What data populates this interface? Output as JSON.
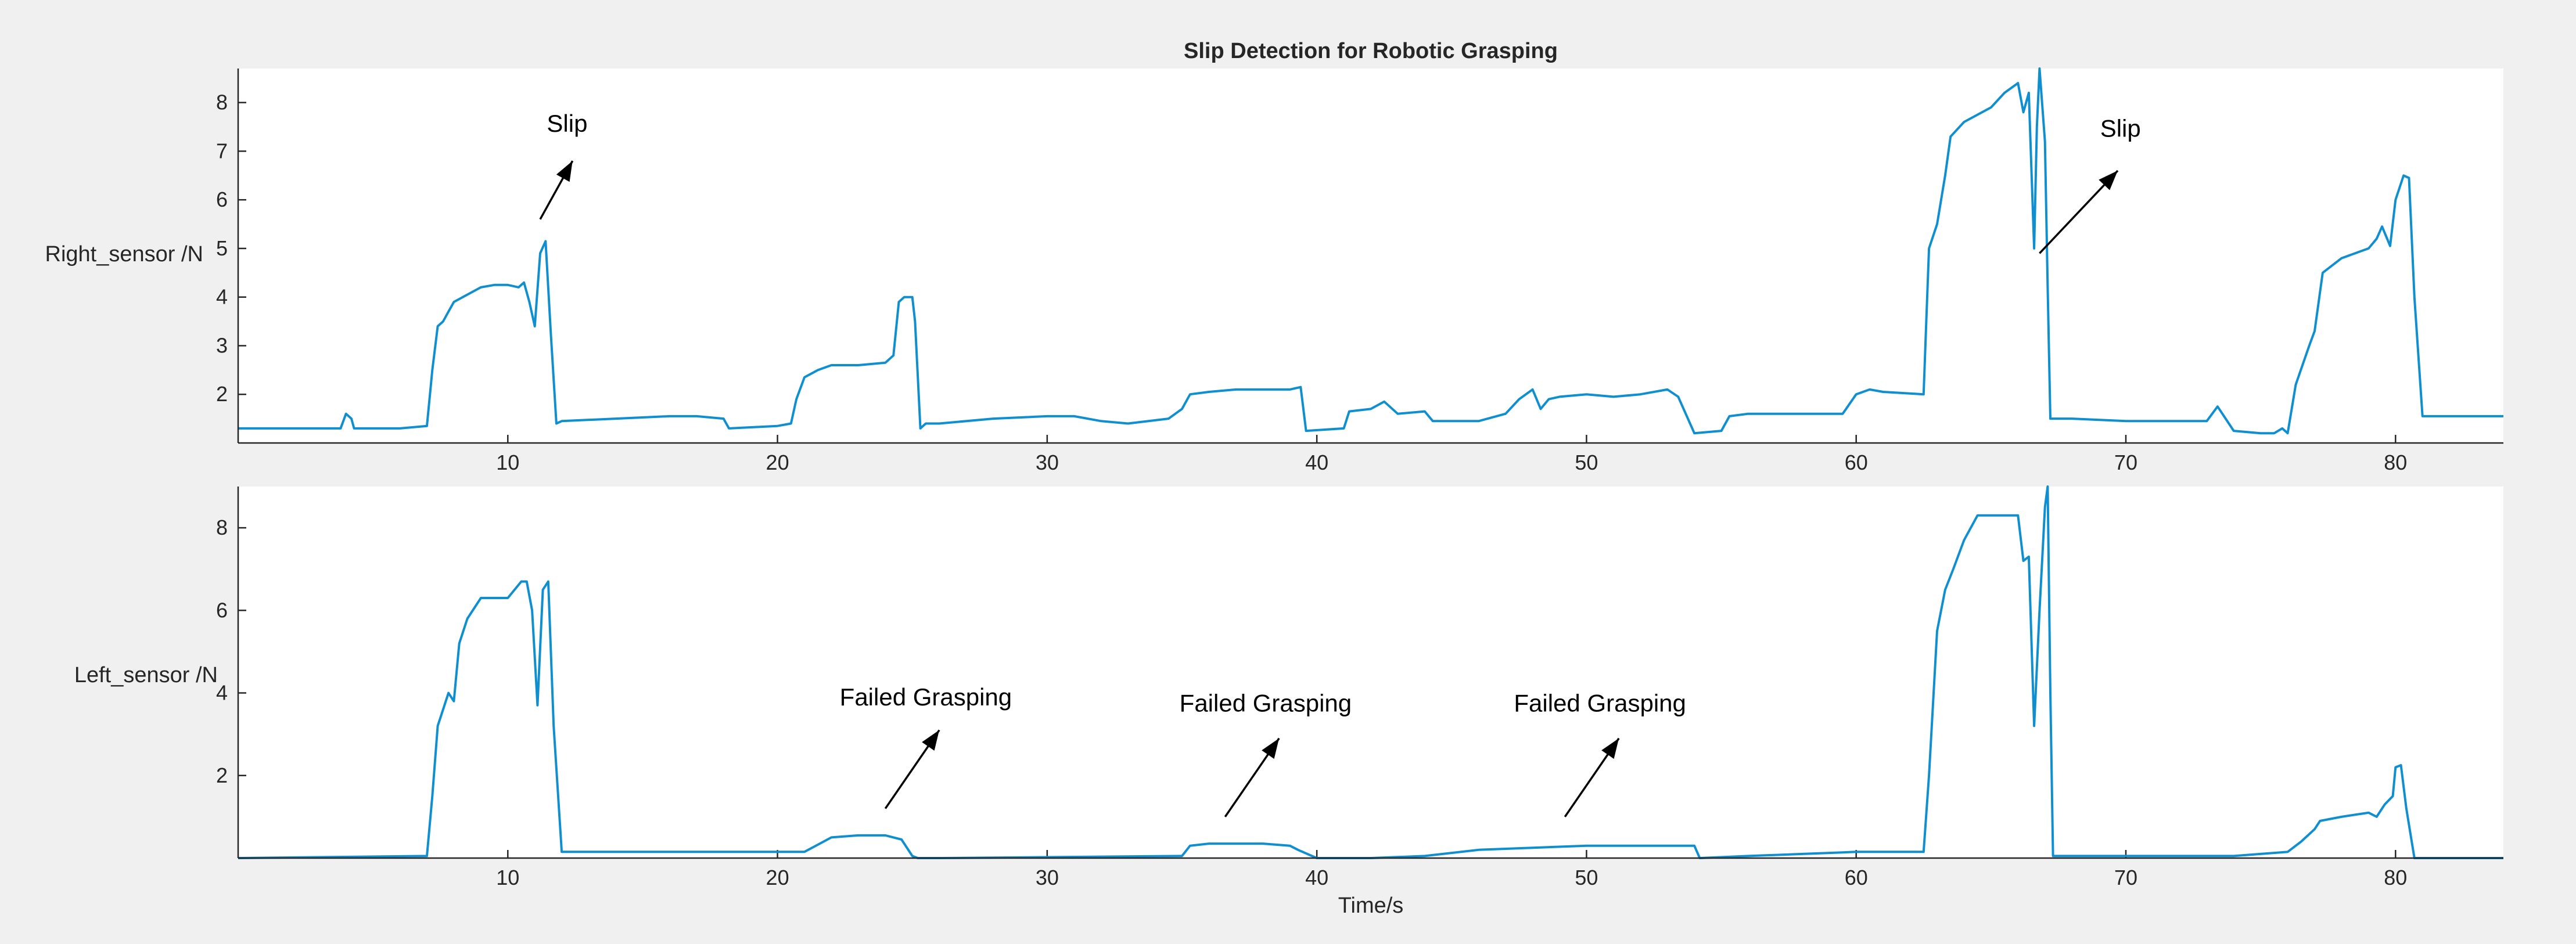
{
  "chart_data": [
    {
      "type": "line",
      "title": "Slip Detection for Robotic Grasping",
      "xlabel": "",
      "ylabel": "Right_sensor /N",
      "xlim": [
        0,
        84
      ],
      "ylim": [
        1,
        8.7
      ],
      "x_ticks": [
        10,
        20,
        30,
        40,
        50,
        60,
        70,
        80
      ],
      "y_ticks": [
        2,
        3,
        4,
        5,
        6,
        7,
        8
      ],
      "grid": false,
      "series": [
        {
          "color": "#0f8fcf",
          "x": [
            0,
            2,
            3.8,
            4,
            4.2,
            4.3,
            6,
            7,
            7.2,
            7.4,
            7.6,
            7.8,
            8,
            8.5,
            9,
            9.5,
            10,
            10.4,
            10.6,
            10.8,
            11,
            11.2,
            11.4,
            11.6,
            11.8,
            12,
            14,
            16,
            17,
            18,
            18.2,
            20,
            20.5,
            20.7,
            21,
            21.5,
            22,
            23,
            24,
            24.3,
            24.5,
            24.7,
            25,
            25.1,
            25.3,
            25.5,
            26,
            28,
            30,
            31,
            32,
            33,
            34.5,
            35,
            35.3,
            36,
            37,
            38,
            39,
            39.4,
            39.6,
            41,
            41.2,
            42,
            42.5,
            43,
            44,
            44.3,
            46,
            47,
            47.5,
            48,
            48.3,
            48.6,
            49,
            50,
            51,
            52,
            53,
            53.4,
            53.6,
            54,
            55,
            55.3,
            56,
            58,
            59.5,
            60,
            60.5,
            61,
            62.5,
            62.6,
            62.7,
            63,
            63.3,
            63.5,
            64,
            65,
            65.5,
            66,
            66.2,
            66.4,
            66.6,
            66.7,
            66.8,
            67,
            67.1,
            67.2,
            67.4,
            68,
            70,
            72,
            73,
            73.4,
            73.7,
            74,
            75,
            75.5,
            75.8,
            76,
            76.3,
            76.8,
            77,
            77.3,
            78,
            79,
            79.3,
            79.5,
            79.8,
            80,
            80.3,
            80.5,
            80.7,
            81,
            82,
            84
          ],
          "y": [
            1.3,
            1.3,
            1.3,
            1.6,
            1.5,
            1.3,
            1.3,
            1.35,
            2.5,
            3.4,
            3.5,
            3.7,
            3.9,
            4.05,
            4.2,
            4.25,
            4.25,
            4.2,
            4.3,
            3.9,
            3.4,
            4.9,
            5.15,
            3.2,
            1.4,
            1.45,
            1.5,
            1.55,
            1.55,
            1.5,
            1.3,
            1.35,
            1.4,
            1.9,
            2.35,
            2.5,
            2.6,
            2.6,
            2.65,
            2.8,
            3.9,
            4.0,
            4.0,
            3.5,
            1.3,
            1.4,
            1.4,
            1.5,
            1.55,
            1.55,
            1.45,
            1.4,
            1.5,
            1.7,
            2.0,
            2.05,
            2.1,
            2.1,
            2.1,
            2.15,
            1.25,
            1.3,
            1.65,
            1.7,
            1.85,
            1.6,
            1.65,
            1.45,
            1.45,
            1.6,
            1.9,
            2.1,
            1.7,
            1.9,
            1.95,
            2.0,
            1.95,
            2.0,
            2.1,
            1.95,
            1.7,
            1.2,
            1.25,
            1.55,
            1.6,
            1.6,
            1.6,
            2.0,
            2.1,
            2.05,
            2.0,
            3.5,
            5.0,
            5.5,
            6.5,
            7.3,
            7.6,
            7.9,
            8.2,
            8.4,
            7.8,
            8.2,
            5.0,
            7.5,
            8.7,
            7.2,
            4.2,
            1.5,
            1.5,
            1.5,
            1.45,
            1.45,
            1.45,
            1.75,
            1.5,
            1.25,
            1.2,
            1.2,
            1.3,
            1.2,
            2.2,
            3.0,
            3.3,
            4.5,
            4.8,
            5.0,
            5.2,
            5.45,
            5.05,
            6.0,
            6.5,
            6.45,
            4.0,
            1.55,
            1.55,
            1.55
          ]
        }
      ],
      "annotations": [
        {
          "text": "Slip",
          "x": 12.2,
          "y": 7.4,
          "arrow_from": [
            11.2,
            5.6
          ],
          "arrow_to": [
            12.4,
            6.8
          ]
        },
        {
          "text": "Slip",
          "x": 69.8,
          "y": 7.3,
          "arrow_from": [
            66.8,
            4.9
          ],
          "arrow_to": [
            69.7,
            6.6
          ]
        }
      ]
    },
    {
      "type": "line",
      "title": "",
      "xlabel": "Time/s",
      "ylabel": "Left_sensor /N",
      "xlim": [
        0,
        84
      ],
      "ylim": [
        0,
        9
      ],
      "x_ticks": [
        10,
        20,
        30,
        40,
        50,
        60,
        70,
        80
      ],
      "y_ticks": [
        2,
        4,
        6,
        8
      ],
      "grid": false,
      "series": [
        {
          "color": "#0f8fcf",
          "x": [
            0,
            7,
            7.2,
            7.4,
            7.6,
            7.8,
            8,
            8.2,
            8.5,
            9,
            9.5,
            10,
            10.5,
            10.7,
            10.9,
            11.1,
            11.3,
            11.5,
            11.7,
            12,
            18,
            20,
            21,
            22,
            23,
            24,
            24.6,
            25,
            25.2,
            26,
            35,
            35.3,
            36,
            37,
            38,
            39,
            39.3,
            40,
            42,
            44,
            46,
            48,
            50,
            52,
            54,
            54.2,
            56,
            58,
            60,
            62.5,
            62.7,
            63,
            63.3,
            63.6,
            64,
            64.5,
            65,
            66,
            66.2,
            66.4,
            66.6,
            66.8,
            67,
            67.1,
            67.2,
            67.3,
            68,
            70,
            72,
            74,
            76,
            76.5,
            77,
            77.2,
            78,
            79,
            79.3,
            79.6,
            79.9,
            80,
            80.2,
            80.4,
            80.7,
            84
          ],
          "y": [
            0,
            0.05,
            1.5,
            3.2,
            3.6,
            4.0,
            3.8,
            5.2,
            5.8,
            6.3,
            6.3,
            6.3,
            6.7,
            6.7,
            6.0,
            3.7,
            6.5,
            6.7,
            3.2,
            0.15,
            0.15,
            0.15,
            0.15,
            0.5,
            0.55,
            0.55,
            0.45,
            0.05,
            0.0,
            0.0,
            0.05,
            0.3,
            0.35,
            0.35,
            0.35,
            0.3,
            0.2,
            0.0,
            0.0,
            0.05,
            0.2,
            0.25,
            0.3,
            0.3,
            0.3,
            0.0,
            0.05,
            0.1,
            0.15,
            0.15,
            2.0,
            5.5,
            6.5,
            7.0,
            7.7,
            8.3,
            8.3,
            8.3,
            7.2,
            7.3,
            3.2,
            6.0,
            8.5,
            9.0,
            4.0,
            0.05,
            0.05,
            0.05,
            0.05,
            0.05,
            0.15,
            0.4,
            0.7,
            0.9,
            1.0,
            1.1,
            1.0,
            1.3,
            1.5,
            2.2,
            2.25,
            1.2,
            0.0,
            0.0
          ]
        }
      ],
      "annotations": [
        {
          "text": "Failed Grasping",
          "x": 25.5,
          "y": 3.7,
          "arrow_from": [
            24,
            1.2
          ],
          "arrow_to": [
            26,
            3.1
          ]
        },
        {
          "text": "Failed Grasping",
          "x": 38.1,
          "y": 3.55,
          "arrow_from": [
            36.6,
            1.0
          ],
          "arrow_to": [
            38.6,
            2.9
          ]
        },
        {
          "text": "Failed Grasping",
          "x": 50.5,
          "y": 3.55,
          "arrow_from": [
            49.2,
            1.0
          ],
          "arrow_to": [
            51.2,
            2.9
          ]
        }
      ]
    }
  ]
}
